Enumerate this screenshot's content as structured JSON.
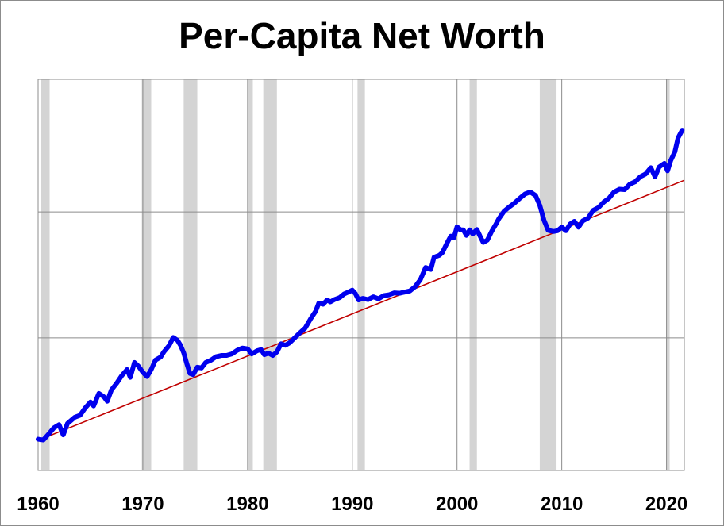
{
  "chart_data": {
    "type": "line",
    "title": "Per-Capita Net Worth",
    "xlabel": "",
    "ylabel": "",
    "xlim": [
      1960,
      2021.7
    ],
    "ylim": [
      0,
      1
    ],
    "x_ticks": [
      1960,
      1970,
      1980,
      1990,
      2000,
      2010,
      2020
    ],
    "x_tick_labels": [
      "1960",
      "1970",
      "1980",
      "1990",
      "2000",
      "2010",
      "2020"
    ],
    "y_tick_labels_shown": false,
    "y_gridlines": [
      0.339,
      0.661
    ],
    "grid": "horizontal and vertical",
    "recession_shading": [
      [
        1960.3,
        1961.1
      ],
      [
        1969.9,
        1970.8
      ],
      [
        1973.9,
        1975.2
      ],
      [
        1980.0,
        1980.5
      ],
      [
        1981.5,
        1982.8
      ],
      [
        1990.5,
        1991.2
      ],
      [
        2001.2,
        2001.9
      ],
      [
        2007.9,
        2009.5
      ],
      [
        2020.0,
        2020.3
      ]
    ],
    "series": [
      {
        "color": "#0000ee",
        "points": [
          [
            1960.0,
            0.08
          ],
          [
            1960.5,
            0.078
          ],
          [
            1961.0,
            0.093
          ],
          [
            1961.5,
            0.109
          ],
          [
            1962.0,
            0.117
          ],
          [
            1962.4,
            0.091
          ],
          [
            1962.8,
            0.12
          ],
          [
            1963.5,
            0.136
          ],
          [
            1964.0,
            0.141
          ],
          [
            1964.5,
            0.16
          ],
          [
            1965.0,
            0.175
          ],
          [
            1965.3,
            0.165
          ],
          [
            1965.8,
            0.197
          ],
          [
            1966.3,
            0.188
          ],
          [
            1966.6,
            0.177
          ],
          [
            1967.0,
            0.206
          ],
          [
            1967.5,
            0.223
          ],
          [
            1968.0,
            0.243
          ],
          [
            1968.5,
            0.258
          ],
          [
            1968.8,
            0.238
          ],
          [
            1969.2,
            0.276
          ],
          [
            1969.6,
            0.266
          ],
          [
            1970.0,
            0.251
          ],
          [
            1970.4,
            0.24
          ],
          [
            1970.8,
            0.258
          ],
          [
            1971.2,
            0.282
          ],
          [
            1971.7,
            0.29
          ],
          [
            1972.0,
            0.303
          ],
          [
            1972.5,
            0.319
          ],
          [
            1972.9,
            0.34
          ],
          [
            1973.3,
            0.333
          ],
          [
            1973.6,
            0.32
          ],
          [
            1973.9,
            0.301
          ],
          [
            1974.2,
            0.273
          ],
          [
            1974.5,
            0.248
          ],
          [
            1974.8,
            0.245
          ],
          [
            1975.2,
            0.264
          ],
          [
            1975.6,
            0.262
          ],
          [
            1976.0,
            0.276
          ],
          [
            1976.5,
            0.282
          ],
          [
            1977.0,
            0.291
          ],
          [
            1977.5,
            0.294
          ],
          [
            1978.0,
            0.294
          ],
          [
            1978.5,
            0.298
          ],
          [
            1979.0,
            0.307
          ],
          [
            1979.5,
            0.313
          ],
          [
            1980.0,
            0.311
          ],
          [
            1980.4,
            0.298
          ],
          [
            1980.9,
            0.306
          ],
          [
            1981.3,
            0.309
          ],
          [
            1981.6,
            0.296
          ],
          [
            1982.0,
            0.3
          ],
          [
            1982.4,
            0.294
          ],
          [
            1982.8,
            0.303
          ],
          [
            1983.2,
            0.324
          ],
          [
            1983.6,
            0.32
          ],
          [
            1984.0,
            0.326
          ],
          [
            1984.5,
            0.339
          ],
          [
            1985.0,
            0.352
          ],
          [
            1985.5,
            0.364
          ],
          [
            1986.0,
            0.387
          ],
          [
            1986.5,
            0.407
          ],
          [
            1986.8,
            0.428
          ],
          [
            1987.2,
            0.425
          ],
          [
            1987.6,
            0.436
          ],
          [
            1987.9,
            0.431
          ],
          [
            1988.3,
            0.437
          ],
          [
            1988.8,
            0.442
          ],
          [
            1989.2,
            0.451
          ],
          [
            1989.7,
            0.457
          ],
          [
            1990.0,
            0.461
          ],
          [
            1990.3,
            0.452
          ],
          [
            1990.6,
            0.436
          ],
          [
            1991.0,
            0.44
          ],
          [
            1991.5,
            0.437
          ],
          [
            1992.0,
            0.444
          ],
          [
            1992.5,
            0.439
          ],
          [
            1993.0,
            0.447
          ],
          [
            1993.5,
            0.449
          ],
          [
            1994.0,
            0.454
          ],
          [
            1994.5,
            0.453
          ],
          [
            1995.0,
            0.456
          ],
          [
            1995.5,
            0.459
          ],
          [
            1996.0,
            0.47
          ],
          [
            1996.5,
            0.488
          ],
          [
            1997.0,
            0.519
          ],
          [
            1997.5,
            0.514
          ],
          [
            1997.8,
            0.545
          ],
          [
            1998.3,
            0.55
          ],
          [
            1998.6,
            0.557
          ],
          [
            1999.0,
            0.579
          ],
          [
            1999.4,
            0.599
          ],
          [
            1999.7,
            0.595
          ],
          [
            2000.0,
            0.623
          ],
          [
            2000.3,
            0.616
          ],
          [
            2000.6,
            0.615
          ],
          [
            2000.9,
            0.601
          ],
          [
            2001.2,
            0.615
          ],
          [
            2001.5,
            0.605
          ],
          [
            2001.9,
            0.616
          ],
          [
            2002.2,
            0.599
          ],
          [
            2002.5,
            0.583
          ],
          [
            2002.9,
            0.589
          ],
          [
            2003.3,
            0.611
          ],
          [
            2003.7,
            0.629
          ],
          [
            2004.0,
            0.644
          ],
          [
            2004.5,
            0.663
          ],
          [
            2005.0,
            0.674
          ],
          [
            2005.5,
            0.684
          ],
          [
            2006.0,
            0.696
          ],
          [
            2006.5,
            0.707
          ],
          [
            2007.0,
            0.712
          ],
          [
            2007.5,
            0.703
          ],
          [
            2007.9,
            0.678
          ],
          [
            2008.3,
            0.64
          ],
          [
            2008.7,
            0.614
          ],
          [
            2009.2,
            0.611
          ],
          [
            2009.6,
            0.613
          ],
          [
            2010.0,
            0.622
          ],
          [
            2010.4,
            0.613
          ],
          [
            2010.8,
            0.63
          ],
          [
            2011.2,
            0.637
          ],
          [
            2011.6,
            0.622
          ],
          [
            2012.0,
            0.638
          ],
          [
            2012.5,
            0.645
          ],
          [
            2013.0,
            0.665
          ],
          [
            2013.5,
            0.672
          ],
          [
            2014.0,
            0.686
          ],
          [
            2014.5,
            0.696
          ],
          [
            2015.0,
            0.712
          ],
          [
            2015.5,
            0.719
          ],
          [
            2016.0,
            0.718
          ],
          [
            2016.5,
            0.732
          ],
          [
            2017.0,
            0.738
          ],
          [
            2017.5,
            0.751
          ],
          [
            2018.0,
            0.758
          ],
          [
            2018.5,
            0.774
          ],
          [
            2018.9,
            0.751
          ],
          [
            2019.3,
            0.776
          ],
          [
            2019.8,
            0.785
          ],
          [
            2020.1,
            0.766
          ],
          [
            2020.4,
            0.792
          ],
          [
            2020.8,
            0.815
          ],
          [
            2021.1,
            0.85
          ],
          [
            2021.5,
            0.87
          ]
        ]
      },
      {
        "color": "#c00000",
        "type": "trend",
        "points": [
          [
            1960.0,
            0.077
          ],
          [
            2021.7,
            0.742
          ]
        ]
      }
    ]
  }
}
